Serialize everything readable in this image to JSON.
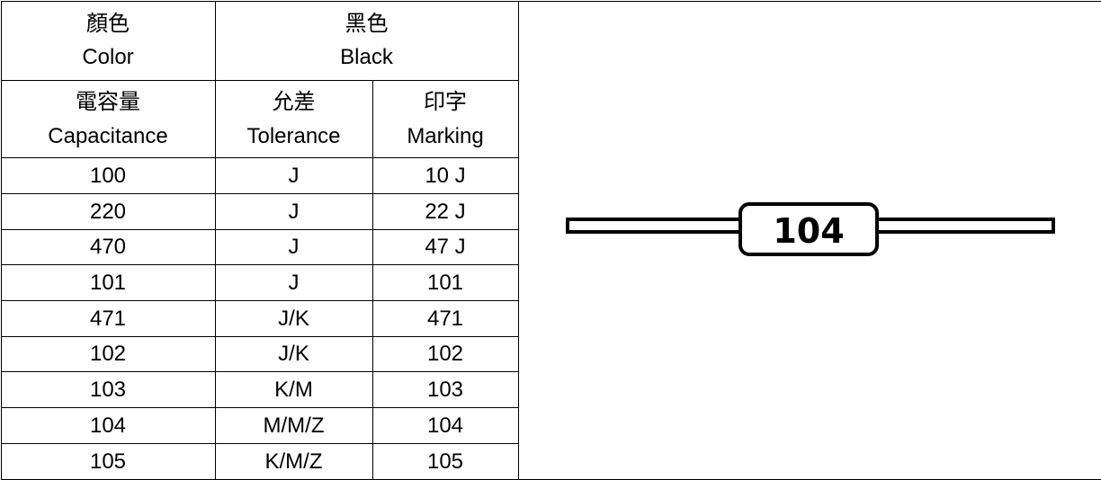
{
  "header": {
    "color": {
      "zh": "顏色",
      "en": "Color"
    },
    "black": {
      "zh": "黑色",
      "en": "Black"
    }
  },
  "columns": [
    {
      "zh": "電容量",
      "en": "Capacitance"
    },
    {
      "zh": "允差",
      "en": "Tolerance"
    },
    {
      "zh": "印字",
      "en": "Marking"
    }
  ],
  "table": {
    "rows": [
      [
        "100",
        "J",
        "10 J"
      ],
      [
        "220",
        "J",
        "22 J"
      ],
      [
        "470",
        "J",
        "47 J"
      ],
      [
        "101",
        "J",
        "101"
      ],
      [
        "471",
        "J/K",
        "471"
      ],
      [
        "102",
        "J/K",
        "102"
      ],
      [
        "103",
        "K/M",
        "103"
      ],
      [
        "104",
        "M/M/Z",
        "104"
      ],
      [
        "105",
        "K/M/Z",
        "105"
      ]
    ]
  },
  "diagram": {
    "label": "104"
  }
}
